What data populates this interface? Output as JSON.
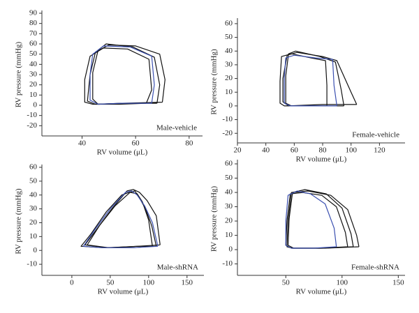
{
  "chart_data": [
    {
      "type": "line",
      "annotation": "Male-vehicle",
      "xlabel": "RV volume (μL)",
      "ylabel": "RV pressure (mmHg)",
      "xlim": [
        25,
        85
      ],
      "xticks": [
        40,
        60,
        80
      ],
      "ylim": [
        -30,
        90
      ],
      "yticks": [
        -20,
        -10,
        0,
        10,
        20,
        30,
        40,
        50,
        60,
        70,
        80,
        90
      ],
      "series": [
        {
          "color": "#111111",
          "x": [
            70,
            71,
            69,
            60,
            50,
            45,
            43,
            42,
            45,
            55,
            70
          ],
          "values": [
            3,
            25,
            50,
            58,
            59,
            52,
            30,
            4,
            1,
            2,
            3
          ]
        },
        {
          "color": "#111111",
          "x": [
            64,
            66,
            65,
            57,
            48,
            43,
            41,
            41,
            44,
            54,
            64
          ],
          "values": [
            2,
            15,
            45,
            55,
            56,
            48,
            25,
            3,
            1,
            1,
            2
          ]
        },
        {
          "color": "#111111",
          "x": [
            68,
            69,
            67,
            59,
            49,
            46,
            44,
            44,
            46,
            56,
            68
          ],
          "values": [
            2,
            20,
            47,
            57,
            60,
            54,
            32,
            6,
            1,
            2,
            2
          ]
        },
        {
          "color": "#3a4fb0",
          "x": [
            66,
            67,
            66,
            58,
            48,
            44,
            43,
            43,
            46,
            55,
            66
          ],
          "values": [
            2,
            20,
            48,
            57,
            58,
            50,
            30,
            5,
            1,
            2,
            2
          ]
        }
      ]
    },
    {
      "type": "line",
      "annotation": "Female-vehicle",
      "xlabel": "RV volume (μL)",
      "ylabel": "RV pressure (mmHg)",
      "xlim": [
        20,
        138
      ],
      "xticks": [
        20,
        40,
        60,
        80,
        100,
        120
      ],
      "ylim": [
        -27,
        62
      ],
      "yticks": [
        -20,
        -10,
        0,
        10,
        20,
        30,
        40,
        50,
        60
      ],
      "series": [
        {
          "color": "#111111",
          "x": [
            104,
            100,
            90,
            80,
            62,
            55,
            52,
            52,
            56,
            80,
            104
          ],
          "values": [
            1,
            10,
            33,
            36,
            39,
            37,
            20,
            3,
            0,
            1,
            1
          ]
        },
        {
          "color": "#111111",
          "x": [
            83,
            83,
            82,
            72,
            58,
            51,
            50,
            50,
            53,
            70,
            83
          ],
          "values": [
            0,
            15,
            33,
            35,
            38,
            36,
            18,
            2,
            0,
            0,
            0
          ]
        },
        {
          "color": "#111111",
          "x": [
            95,
            93,
            89,
            78,
            61,
            56,
            54,
            54,
            58,
            78,
            95
          ],
          "values": [
            0,
            12,
            32,
            36,
            40,
            38,
            22,
            2,
            0,
            0,
            0
          ]
        },
        {
          "color": "#3a4fb0",
          "x": [
            90,
            88,
            87,
            75,
            60,
            54,
            53,
            53,
            57,
            75,
            90
          ],
          "values": [
            0,
            15,
            34,
            35,
            37,
            35,
            20,
            2,
            0,
            0,
            0
          ]
        }
      ]
    },
    {
      "type": "line",
      "annotation": "Male-shRNA",
      "xlabel": "RV volume (μL)",
      "ylabel": "RV pressure (mmHg)",
      "xlim": [
        -39,
        172
      ],
      "xticks": [
        0,
        50,
        100,
        150
      ],
      "ylim": [
        -18,
        60
      ],
      "yticks": [
        -10,
        0,
        10,
        20,
        30,
        40,
        50,
        60
      ],
      "series": [
        {
          "color": "#111111",
          "x": [
            115,
            110,
            98,
            88,
            80,
            72,
            52,
            32,
            17,
            45,
            85,
            115
          ],
          "values": [
            4,
            25,
            36,
            42,
            44,
            43,
            30,
            15,
            4,
            2,
            3,
            4
          ]
        },
        {
          "color": "#111111",
          "x": [
            105,
            100,
            92,
            85,
            75,
            65,
            45,
            25,
            12,
            40,
            80,
            105
          ],
          "values": [
            3,
            22,
            35,
            41,
            42,
            40,
            28,
            12,
            3,
            2,
            2,
            3
          ]
        },
        {
          "color": "#111111",
          "x": [
            110,
            104,
            96,
            88,
            82,
            76,
            56,
            36,
            20,
            48,
            85,
            110
          ],
          "values": [
            3,
            18,
            30,
            38,
            43,
            42,
            32,
            18,
            4,
            2,
            3,
            3
          ]
        },
        {
          "color": "#3a4fb0",
          "x": [
            112,
            105,
            95,
            85,
            78,
            70,
            50,
            30,
            15,
            40,
            80,
            112
          ],
          "values": [
            3,
            20,
            32,
            40,
            43,
            42,
            30,
            15,
            3,
            2,
            2,
            3
          ]
        }
      ]
    },
    {
      "type": "line",
      "annotation": "Female-shRNA",
      "xlabel": "RV volume (μL)",
      "ylabel": "RV pressure (mmHg)",
      "xlim": [
        7,
        156
      ],
      "xticks": [
        50,
        100,
        150
      ],
      "ylim": [
        -18,
        61
      ],
      "yticks": [
        -10,
        0,
        10,
        20,
        30,
        40,
        50,
        60
      ],
      "series": [
        {
          "color": "#111111",
          "x": [
            115,
            113,
            105,
            90,
            70,
            55,
            52,
            51,
            56,
            85,
            115
          ],
          "values": [
            2,
            10,
            28,
            38,
            41,
            40,
            20,
            2,
            1,
            1,
            2
          ]
        },
        {
          "color": "#111111",
          "x": [
            105,
            103,
            95,
            82,
            65,
            54,
            51,
            50,
            55,
            80,
            105
          ],
          "values": [
            2,
            12,
            30,
            38,
            40,
            39,
            20,
            3,
            1,
            1,
            2
          ]
        },
        {
          "color": "#111111",
          "x": [
            110,
            108,
            100,
            86,
            67,
            56,
            53,
            52,
            57,
            82,
            110
          ],
          "values": [
            2,
            11,
            29,
            39,
            42,
            40,
            22,
            3,
            1,
            1,
            2
          ]
        },
        {
          "color": "#3a4fb0",
          "x": [
            95,
            93,
            85,
            72,
            60,
            52,
            50,
            50,
            55,
            75,
            95
          ],
          "values": [
            2,
            15,
            32,
            39,
            41,
            38,
            20,
            3,
            1,
            1,
            2
          ]
        }
      ]
    }
  ]
}
